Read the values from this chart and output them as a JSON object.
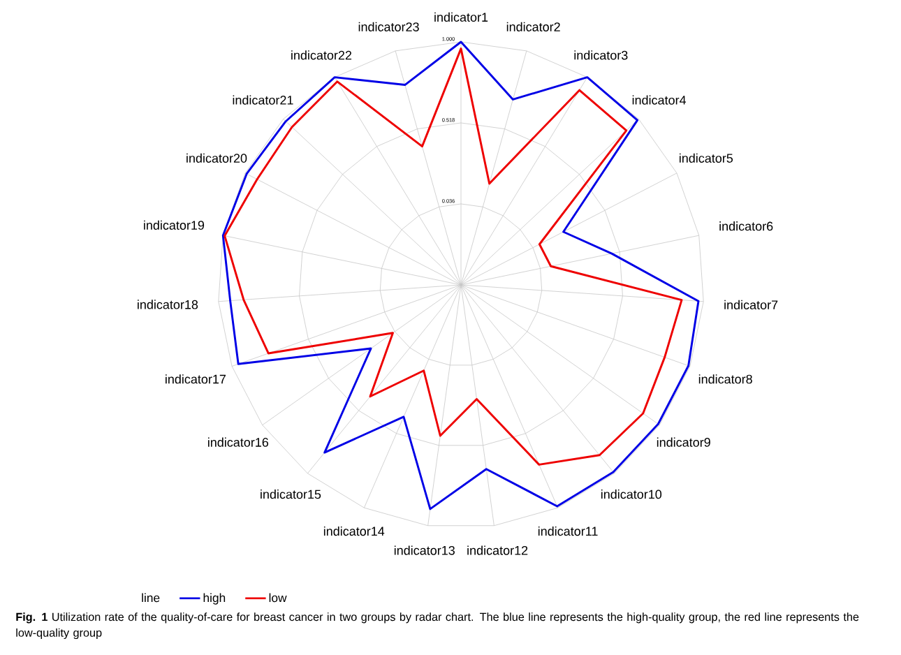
{
  "chart_data": {
    "type": "radar",
    "categories": [
      "indicator1",
      "indicator2",
      "indicator3",
      "indicator4",
      "indicator5",
      "indicator6",
      "indicator7",
      "indicator8",
      "indicator9",
      "indicator10",
      "indicator11",
      "indicator12",
      "indicator13",
      "indicator14",
      "indicator15",
      "indicator16",
      "indicator17",
      "indicator18",
      "indicator19",
      "indicator20",
      "indicator21",
      "indicator22",
      "indicator23"
    ],
    "series": [
      {
        "name": "high",
        "color": "#0000e6",
        "values": [
          1.0,
          0.7,
          1.0,
          0.99,
          0.24,
          0.47,
          0.97,
          0.99,
          0.99,
          0.99,
          0.99,
          0.66,
          0.9,
          0.41,
          0.84,
          0.21,
          0.96,
          0.93,
          1.0,
          0.99,
          0.98,
          1.0,
          0.79
        ]
      },
      {
        "name": "low",
        "color": "#ee0000",
        "values": [
          0.96,
          0.18,
          0.91,
          0.9,
          0.08,
          0.1,
          0.87,
          0.84,
          0.88,
          0.86,
          0.72,
          0.24,
          0.46,
          0.11,
          0.41,
          0.05,
          0.77,
          0.85,
          0.99,
          0.92,
          0.93,
          0.97,
          0.41
        ]
      }
    ],
    "ylim": [
      -0.446,
      1.0
    ],
    "yticks": [
      {
        "value": 0.036,
        "label": "0.036"
      },
      {
        "value": 0.518,
        "label": "0.518"
      },
      {
        "value": 1.0,
        "label": "1.000"
      }
    ],
    "grid": true,
    "legend": "bottom",
    "legend_title": "line",
    "annotations": [
      "**Fig. 1** Utilization rate of the quality-of-care for breast cancer in two groups by radar chart. The blue line represents the high-quality group, the red line represents the low-quality group"
    ]
  }
}
